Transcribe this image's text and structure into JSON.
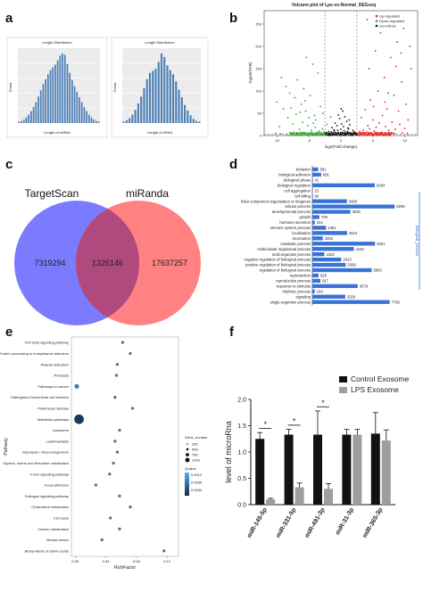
{
  "panels": {
    "a": "a",
    "b": "b",
    "c": "c",
    "d": "d",
    "e": "e",
    "f": "f"
  },
  "chart_data": [
    {
      "id": "a1",
      "type": "bar",
      "title": "Length Distribution",
      "xlabel": "Length of mRNA",
      "ylabel": "Count",
      "values": [
        2,
        3,
        5,
        8,
        12,
        17,
        23,
        30,
        38,
        47,
        56,
        63,
        70,
        76,
        80,
        84,
        90,
        97,
        100,
        98,
        85,
        72,
        62,
        53,
        45,
        37,
        30,
        23,
        17,
        12,
        8,
        5,
        3,
        2
      ]
    },
    {
      "id": "a2",
      "type": "bar",
      "title": "Length Distribution",
      "xlabel": "Length of sRNA",
      "ylabel": "Count",
      "values": [
        2,
        4,
        7,
        12,
        19,
        28,
        38,
        50,
        63,
        72,
        75,
        78,
        88,
        100,
        95,
        83,
        76,
        70,
        60,
        48,
        37,
        26,
        18,
        11,
        6,
        3,
        2
      ]
    },
    {
      "id": "b",
      "type": "scatter",
      "title": "Volcano plot of Lps-vs-Normal_DEGseq",
      "xlabel": "log2(Fold change)",
      "ylabel": "-log10(FDR)",
      "xticks": [
        "-10",
        "-5",
        "0",
        "5",
        "10"
      ],
      "yticks": [
        "0",
        "50",
        "100",
        "150",
        "200",
        "250"
      ],
      "xlim": [
        -12,
        12
      ],
      "ylim": [
        0,
        280
      ],
      "legend": [
        "Up-regulated",
        "Down-regulated",
        "non-DEGs"
      ],
      "colors": {
        "up": "#e31a1c",
        "down": "#33a02c",
        "non": "#111111"
      },
      "series": [
        {
          "name": "Up-regulated",
          "points": [
            [
              3,
              5
            ],
            [
              3.5,
              12
            ],
            [
              4,
              8
            ],
            [
              4.2,
              22
            ],
            [
              4.5,
              15
            ],
            [
              5,
              35
            ],
            [
              5.2,
              10
            ],
            [
              5.5,
              18
            ],
            [
              6,
              28
            ],
            [
              6.3,
              6
            ],
            [
              6.5,
              45
            ],
            [
              7,
              20
            ],
            [
              7.2,
              60
            ],
            [
              7.5,
              12
            ],
            [
              8,
              30
            ],
            [
              8.3,
              90
            ],
            [
              8.5,
              14
            ],
            [
              9,
              55
            ],
            [
              9.2,
              25
            ],
            [
              9.5,
              120
            ],
            [
              10,
              16
            ],
            [
              10.2,
              70
            ],
            [
              10.5,
              35
            ],
            [
              11,
              150
            ],
            [
              3.8,
              58
            ],
            [
              4.6,
              80
            ],
            [
              5.8,
              100
            ],
            [
              6.8,
              130
            ],
            [
              7.8,
              175
            ],
            [
              8.8,
              210
            ],
            [
              9.8,
              240
            ],
            [
              5.4,
              190
            ],
            [
              6.2,
              230
            ],
            [
              4.4,
              150
            ],
            [
              7.4,
              95
            ],
            [
              8.6,
              155
            ],
            [
              10.8,
              200
            ],
            [
              3.2,
              40
            ],
            [
              5.1,
              65
            ],
            [
              6.9,
              75
            ],
            [
              9.4,
              185
            ],
            [
              4.1,
              260
            ],
            [
              2.6,
              3
            ],
            [
              2.9,
              9
            ],
            [
              3.4,
              2
            ],
            [
              4.3,
              3
            ],
            [
              5.6,
              4
            ],
            [
              6.6,
              3
            ],
            [
              7.6,
              5
            ],
            [
              8.4,
              4
            ],
            [
              9.6,
              6
            ],
            [
              10.4,
              5
            ]
          ]
        },
        {
          "name": "Down-regulated",
          "points": [
            [
              -3,
              4
            ],
            [
              -3.4,
              10
            ],
            [
              -3.8,
              6
            ],
            [
              -4,
              18
            ],
            [
              -4.3,
              28
            ],
            [
              -4.6,
              12
            ],
            [
              -5,
              40
            ],
            [
              -5.2,
              22
            ],
            [
              -5.5,
              55
            ],
            [
              -6,
              30
            ],
            [
              -6.2,
              70
            ],
            [
              -6.5,
              14
            ],
            [
              -7,
              48
            ],
            [
              -7.2,
              85
            ],
            [
              -7.5,
              26
            ],
            [
              -8,
              95
            ],
            [
              -8.3,
              40
            ],
            [
              -8.6,
              110
            ],
            [
              -9,
              60
            ],
            [
              -9.3,
              130
            ],
            [
              -9.6,
              20
            ],
            [
              -10,
              75
            ],
            [
              -3.2,
              65
            ],
            [
              -4.8,
              90
            ],
            [
              -5.8,
              105
            ],
            [
              -6.8,
              125
            ],
            [
              -3.6,
              140
            ],
            [
              -4.4,
              160
            ],
            [
              -5.4,
              175
            ],
            [
              -2.8,
              50
            ],
            [
              -3.9,
              35
            ],
            [
              -7.8,
              62
            ],
            [
              -2.5,
              3
            ],
            [
              -2.7,
              8
            ],
            [
              -3.1,
              2
            ],
            [
              -3.7,
              3
            ],
            [
              -4.5,
              4
            ],
            [
              -5.3,
              3
            ],
            [
              -6.1,
              5
            ],
            [
              -6.9,
              4
            ],
            [
              -7.7,
              6
            ],
            [
              -8.5,
              3
            ],
            [
              -9.4,
              4
            ],
            [
              -10.2,
              5
            ],
            [
              -2.9,
              15
            ],
            [
              -4.1,
              45
            ],
            [
              -5.6,
              78
            ],
            [
              -6.4,
              52
            ],
            [
              -1.6,
              42
            ],
            [
              -2.2,
              25
            ]
          ]
        },
        {
          "name": "non-DEGs",
          "points": [
            [
              -2,
              2
            ],
            [
              -1.8,
              5
            ],
            [
              -1.5,
              8
            ],
            [
              -1.2,
              3
            ],
            [
              -1,
              10
            ],
            [
              -0.8,
              6
            ],
            [
              -0.5,
              12
            ],
            [
              -0.3,
              4
            ],
            [
              0,
              14
            ],
            [
              0.2,
              7
            ],
            [
              0.5,
              11
            ],
            [
              0.8,
              5
            ],
            [
              1,
              9
            ],
            [
              1.2,
              15
            ],
            [
              1.5,
              6
            ],
            [
              1.8,
              3
            ],
            [
              2,
              8
            ],
            [
              2.2,
              4
            ],
            [
              -2.2,
              6
            ],
            [
              -1.4,
              18
            ],
            [
              -0.6,
              22
            ],
            [
              0.4,
              20
            ],
            [
              1.4,
              24
            ],
            [
              -0.9,
              28
            ],
            [
              0.9,
              32
            ],
            [
              0.1,
              26
            ],
            [
              -0.2,
              38
            ],
            [
              0.6,
              42
            ],
            [
              -1.1,
              13
            ],
            [
              1.1,
              17
            ],
            [
              -0.4,
              46
            ],
            [
              0.3,
              55
            ],
            [
              -1.6,
              2
            ],
            [
              1.6,
              2
            ],
            [
              0.7,
              1
            ],
            [
              -0.7,
              1
            ],
            [
              1.9,
              12
            ],
            [
              -1.9,
              9
            ],
            [
              2.4,
              2
            ],
            [
              -2.4,
              3
            ],
            [
              0.05,
              60
            ],
            [
              1.3,
              35
            ]
          ]
        }
      ]
    },
    {
      "id": "c",
      "type": "venn",
      "sets": [
        "TargetScan",
        "miRanda"
      ],
      "only_a": "7319294",
      "both": "1326146",
      "only_b": "17637257",
      "colors": {
        "a": "#7b7bff",
        "b": "#ff6f6f",
        "both": "#b0497d"
      }
    },
    {
      "id": "d",
      "type": "bar",
      "orientation": "horizontal",
      "side_label": "biological_process",
      "color": "#3a73d8",
      "categories": [
        "behavior",
        "biological adhesion",
        "biological phase",
        "biological regulation",
        "cell aggregation",
        "cell killing",
        "llular component organization or biogenes",
        "cellular process",
        "developmental process",
        "growth",
        "hormone secretion",
        "immune system process",
        "localization",
        "locomotion",
        "metabolic process",
        "multicellular organismal process",
        "multi-organism process",
        "negative regulation of biological process",
        "positive regulation of biological process",
        "regulation of biological process",
        "reproduction",
        "reproductive process",
        "response to stimulus",
        "rhythmic process",
        "signaling",
        "single-organism process"
      ],
      "values": [
        591,
        891,
        41,
        6304,
        15,
        60,
        3490,
        8299,
        3830,
        709,
        244,
        1381,
        3512,
        1053,
        6321,
        4182,
        1202,
        2913,
        3369,
        5983,
        625,
        817,
        4576,
        244,
        3320,
        7795
      ],
      "xmax": 9000
    },
    {
      "id": "e",
      "type": "scatter",
      "xlabel": "RichFactor",
      "ylabel": "Pathway",
      "xticks": [
        "0.00",
        "0.04",
        "0.08",
        "0.12"
      ],
      "xlim": [
        -0.005,
        0.135
      ],
      "categories": [
        "TGF-beta signaling pathway",
        "Protein processing in endoplasmic reticulum",
        "Platelet activation",
        "Pertussis",
        "Pathways in cancer",
        "Pathogenic Escherichia coli infection",
        "Parkinsons disease",
        "Metabolic pathways",
        "Lysosome",
        "Leishmaniasis",
        "Glycolysis / Gluconeogenesis",
        "Glycine, serine and threonine metabolism",
        "FoxO signaling pathway",
        "Focal adhesion",
        "Estrogen signaling pathway",
        "Cholesterol metabolism",
        "Cell cycle",
        "Carbon metabolism",
        "Breast cancer",
        "Biosynthesis of amino acids"
      ],
      "richfactor": [
        0.062,
        0.072,
        0.055,
        0.054,
        0.002,
        0.052,
        0.075,
        0.005,
        0.058,
        0.052,
        0.055,
        0.05,
        0.045,
        0.027,
        0.058,
        0.072,
        0.046,
        0.058,
        0.035,
        0.116
      ],
      "gene_number": [
        2,
        2,
        2,
        2,
        12,
        2,
        2,
        95,
        2,
        2,
        2,
        2,
        2,
        2,
        2,
        2,
        2,
        2,
        2,
        2
      ],
      "qvalue": [
        0.045,
        0.045,
        0.045,
        0.045,
        0.02,
        0.045,
        0.045,
        0.002,
        0.045,
        0.045,
        0.045,
        0.045,
        0.045,
        0.045,
        0.045,
        0.045,
        0.045,
        0.045,
        0.045,
        0.045
      ],
      "legend_size_title": "Gene_number",
      "legend_sizes": [
        "250",
        "500",
        "750",
        "1000"
      ],
      "legend_color_title": "Qvalue",
      "legend_color_ticks": [
        "0.0012",
        "0.0008",
        "0.0004"
      ]
    },
    {
      "id": "f",
      "type": "bar",
      "ylabel": "level of microRna",
      "categories": [
        "miR-145-5p",
        "miR-331-5p",
        "miR-491-3p",
        "miR-31-3p",
        "miR-365-3p"
      ],
      "series": [
        {
          "name": "Control Exosome",
          "values": [
            1.25,
            1.33,
            1.33,
            1.33,
            1.35
          ],
          "errors": [
            0.12,
            0.1,
            0.45,
            0.1,
            0.4
          ],
          "color": "#111111"
        },
        {
          "name": "LPS Exosome",
          "values": [
            0.1,
            0.33,
            0.3,
            1.33,
            1.22
          ],
          "errors": [
            0.02,
            0.08,
            0.1,
            0.1,
            0.2
          ],
          "color": "#9e9e9e"
        }
      ],
      "ylim": [
        0,
        2.0
      ],
      "yticks": [
        "0.0",
        "0.5",
        "1.0",
        "1.5",
        "2.0"
      ],
      "significance": [
        "*",
        "*",
        "*"
      ]
    }
  ]
}
